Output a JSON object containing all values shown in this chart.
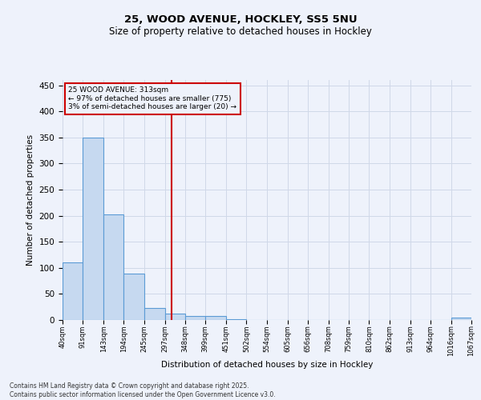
{
  "title_line1": "25, WOOD AVENUE, HOCKLEY, SS5 5NU",
  "title_line2": "Size of property relative to detached houses in Hockley",
  "xlabel": "Distribution of detached houses by size in Hockley",
  "ylabel": "Number of detached properties",
  "footer_line1": "Contains HM Land Registry data © Crown copyright and database right 2025.",
  "footer_line2": "Contains public sector information licensed under the Open Government Licence v3.0.",
  "annotation_line1": "25 WOOD AVENUE: 313sqm",
  "annotation_line2": "← 97% of detached houses are smaller (775)",
  "annotation_line3": "3% of semi-detached houses are larger (20) →",
  "property_value": 313,
  "bin_edges": [
    40,
    91,
    143,
    194,
    245,
    297,
    348,
    399,
    451,
    502,
    554,
    605,
    656,
    708,
    759,
    810,
    862,
    913,
    964,
    1016,
    1067
  ],
  "bar_heights": [
    110,
    350,
    203,
    89,
    23,
    13,
    8,
    7,
    2,
    0,
    0,
    0,
    0,
    0,
    0,
    0,
    0,
    0,
    0,
    4
  ],
  "bar_color": "#c6d9f0",
  "bar_edge_color": "#5b9bd5",
  "line_color": "#cc0000",
  "annotation_box_color": "#cc0000",
  "background_color": "#eef2fb",
  "grid_color": "#d0d8e8",
  "ylim": [
    0,
    460
  ],
  "yticks": [
    0,
    50,
    100,
    150,
    200,
    250,
    300,
    350,
    400,
    450
  ]
}
